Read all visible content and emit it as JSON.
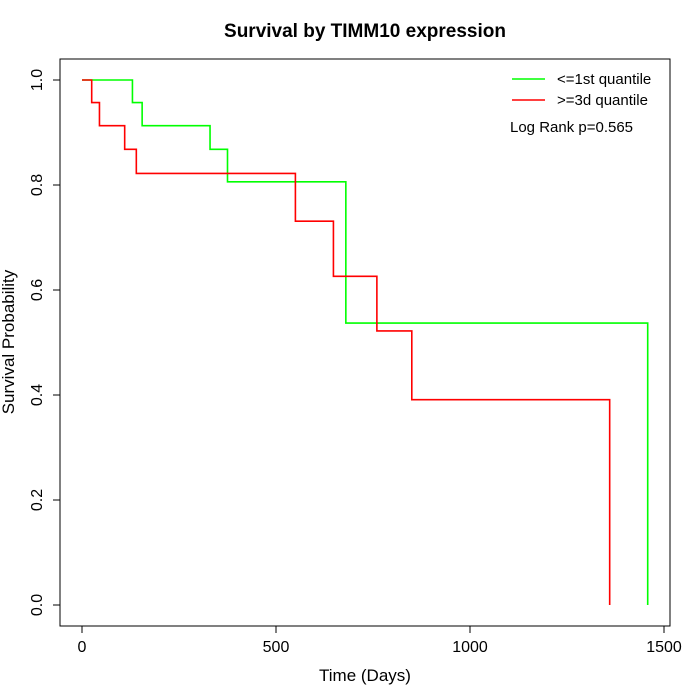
{
  "chart_data": {
    "type": "line",
    "step": true,
    "title": "Survival by TIMM10 expression",
    "xlabel": "Time (Days)",
    "ylabel": "Survival Probability",
    "xlim": [
      0,
      1500
    ],
    "ylim": [
      0,
      1
    ],
    "x_ticks": [
      0,
      500,
      1000,
      1500
    ],
    "y_ticks": [
      0.0,
      0.2,
      0.4,
      0.6,
      0.8,
      1.0
    ],
    "x_tick_labels": [
      "0",
      "500",
      "1000",
      "1500"
    ],
    "y_tick_labels": [
      "0.0",
      "0.2",
      "0.4",
      "0.6",
      "0.8",
      "1.0"
    ],
    "grid": false,
    "legend_position": "top-right",
    "annotation": "Log Rank p=0.565",
    "series": [
      {
        "name": "<=1st quantile",
        "color": "#00ff00",
        "x": [
          0,
          130,
          155,
          330,
          375,
          680,
          1458
        ],
        "y": [
          1.0,
          0.957,
          0.913,
          0.868,
          0.806,
          0.537,
          0.0
        ]
      },
      {
        "name": ">=3d quantile",
        "color": "#ff0000",
        "x": [
          0,
          25,
          45,
          110,
          140,
          550,
          648,
          760,
          850,
          1360
        ],
        "y": [
          1.0,
          0.957,
          0.913,
          0.868,
          0.822,
          0.731,
          0.626,
          0.522,
          0.391,
          0.0
        ]
      }
    ]
  }
}
